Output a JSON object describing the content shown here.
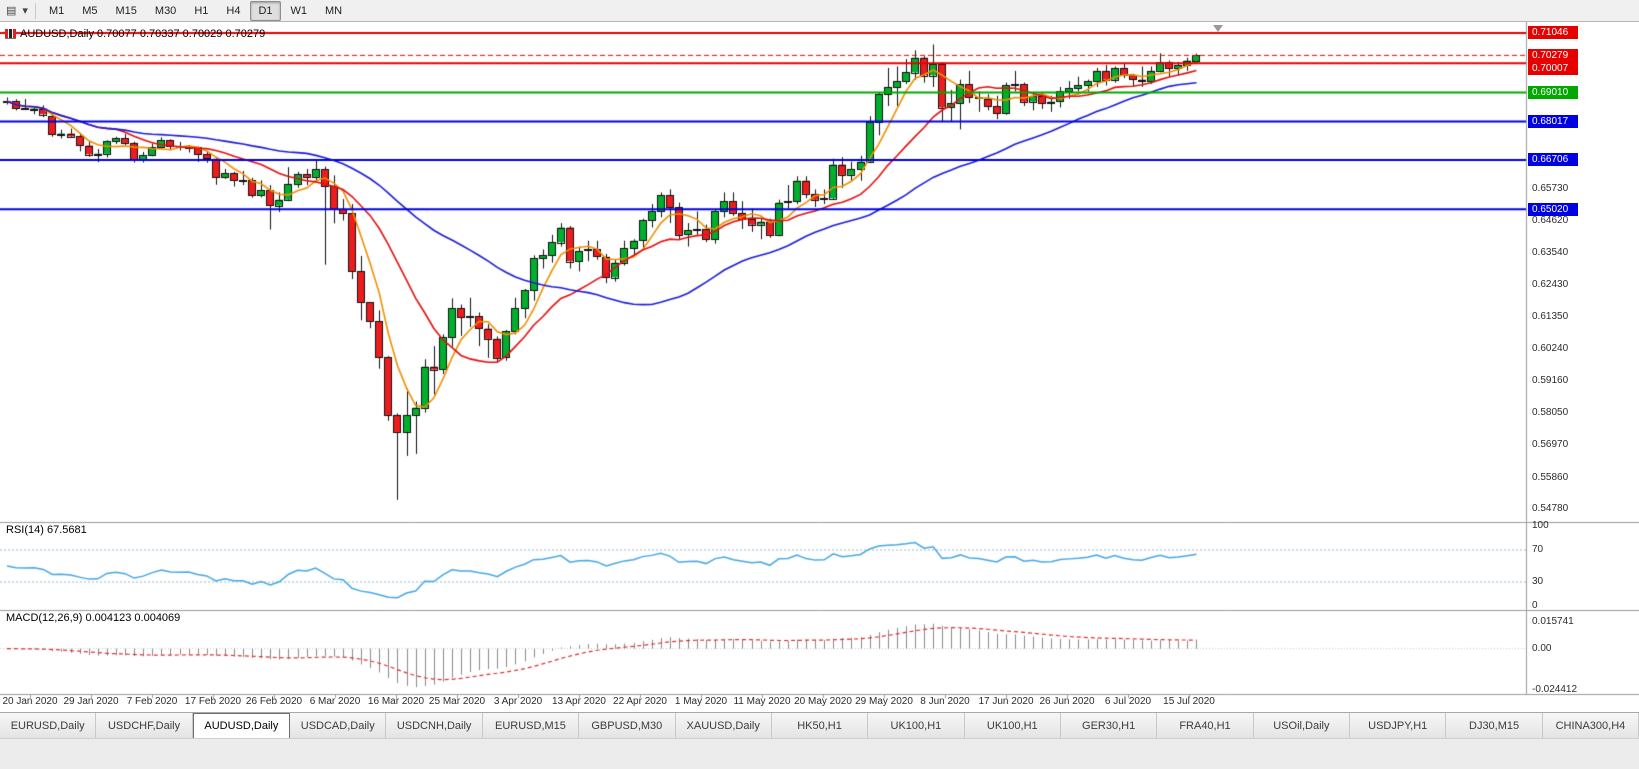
{
  "toolbar": {
    "chart_icon_glyph": "▤",
    "caret_glyph": "▾",
    "timeframes": [
      "M1",
      "M5",
      "M15",
      "M30",
      "H1",
      "H4",
      "D1",
      "W1",
      "MN"
    ],
    "active_timeframe": "D1"
  },
  "chart": {
    "title_line": "AUDUSD,Daily 0.70077 0.70337 0.70029 0.70279",
    "symbol": "AUDUSD",
    "period": "Daily"
  },
  "colors": {
    "up": "#00b02c",
    "down": "#ee1c1c",
    "wick": "#111111",
    "background": "#ffffff"
  },
  "chart_data": {
    "type": "candlestick",
    "symbol": "AUDUSD",
    "timeframe": "Daily",
    "last_ohlc": [
      0.70077,
      0.70337,
      0.70029,
      0.70279
    ],
    "price_axis": {
      "min": 0.5448,
      "max": 0.7135
    },
    "x_axis_dates": [
      "20 Jan 2020",
      "29 Jan 2020",
      "7 Feb 2020",
      "17 Feb 2020",
      "26 Feb 2020",
      "6 Mar 2020",
      "16 Mar 2020",
      "25 Mar 2020",
      "3 Apr 2020",
      "13 Apr 2020",
      "22 Apr 2020",
      "1 May 2020",
      "11 May 2020",
      "20 May 2020",
      "29 May 2020",
      "8 Jun 2020",
      "17 Jun 2020",
      "26 Jun 2020",
      "6 Jul 2020",
      "15 Jul 2020"
    ],
    "candles": [
      [
        0.6871,
        0.6884,
        0.686,
        0.6871
      ],
      [
        0.6871,
        0.6878,
        0.684,
        0.6847
      ],
      [
        0.6847,
        0.6879,
        0.6842,
        0.6845
      ],
      [
        0.6845,
        0.685,
        0.6827,
        0.6846
      ],
      [
        0.6846,
        0.6857,
        0.6817,
        0.6827
      ],
      [
        0.682,
        0.6829,
        0.675,
        0.6758
      ],
      [
        0.6758,
        0.6774,
        0.6744,
        0.6761
      ],
      [
        0.6761,
        0.6778,
        0.6748,
        0.6751
      ],
      [
        0.6751,
        0.6759,
        0.67,
        0.672
      ],
      [
        0.672,
        0.6733,
        0.6682,
        0.669
      ],
      [
        0.669,
        0.6708,
        0.6663,
        0.6692
      ],
      [
        0.6692,
        0.6738,
        0.6679,
        0.6735
      ],
      [
        0.6735,
        0.675,
        0.6725,
        0.6745
      ],
      [
        0.6745,
        0.676,
        0.6722,
        0.6729
      ],
      [
        0.6729,
        0.6733,
        0.6662,
        0.6672
      ],
      [
        0.6672,
        0.6698,
        0.6662,
        0.6687
      ],
      [
        0.6687,
        0.6727,
        0.6683,
        0.6715
      ],
      [
        0.6715,
        0.6748,
        0.671,
        0.6738
      ],
      [
        0.6738,
        0.6741,
        0.6704,
        0.6717
      ],
      [
        0.6717,
        0.6732,
        0.6703,
        0.6712
      ],
      [
        0.6712,
        0.6722,
        0.6696,
        0.6714
      ],
      [
        0.6714,
        0.6717,
        0.6664,
        0.669
      ],
      [
        0.669,
        0.67,
        0.6661,
        0.6675
      ],
      [
        0.6675,
        0.6677,
        0.6586,
        0.6612
      ],
      [
        0.6612,
        0.664,
        0.6606,
        0.6626
      ],
      [
        0.6626,
        0.663,
        0.658,
        0.6601
      ],
      [
        0.6601,
        0.6633,
        0.6585,
        0.6601
      ],
      [
        0.6601,
        0.661,
        0.6542,
        0.6551
      ],
      [
        0.6551,
        0.6601,
        0.6543,
        0.6567
      ],
      [
        0.6567,
        0.6585,
        0.6433,
        0.6515
      ],
      [
        0.6515,
        0.656,
        0.6493,
        0.6535
      ],
      [
        0.6535,
        0.6646,
        0.653,
        0.6589
      ],
      [
        0.6589,
        0.663,
        0.6576,
        0.6622
      ],
      [
        0.6622,
        0.664,
        0.6585,
        0.6613
      ],
      [
        0.6613,
        0.667,
        0.6599,
        0.6639
      ],
      [
        0.6639,
        0.6648,
        0.6313,
        0.6581
      ],
      [
        0.6581,
        0.6618,
        0.6454,
        0.6503
      ],
      [
        0.6503,
        0.6537,
        0.6464,
        0.6489
      ],
      [
        0.6489,
        0.652,
        0.6264,
        0.629
      ],
      [
        0.629,
        0.6343,
        0.6123,
        0.6184
      ],
      [
        0.6184,
        0.6185,
        0.6096,
        0.612
      ],
      [
        0.612,
        0.6157,
        0.5958,
        0.5997
      ],
      [
        0.5997,
        0.6001,
        0.578,
        0.58
      ],
      [
        0.58,
        0.5805,
        0.551,
        0.5742
      ],
      [
        0.5742,
        0.589,
        0.566,
        0.58
      ],
      [
        0.58,
        0.5846,
        0.5667,
        0.5825
      ],
      [
        0.5825,
        0.599,
        0.5808,
        0.5965
      ],
      [
        0.5965,
        0.6035,
        0.587,
        0.5955
      ],
      [
        0.5955,
        0.6075,
        0.594,
        0.6065
      ],
      [
        0.6065,
        0.6198,
        0.6033,
        0.6165
      ],
      [
        0.6165,
        0.6177,
        0.607,
        0.6133
      ],
      [
        0.6133,
        0.62,
        0.61,
        0.6137
      ],
      [
        0.6137,
        0.615,
        0.6035,
        0.6095
      ],
      [
        0.6095,
        0.611,
        0.5995,
        0.606
      ],
      [
        0.606,
        0.6068,
        0.5982,
        0.5995
      ],
      [
        0.5995,
        0.609,
        0.5985,
        0.6085
      ],
      [
        0.6085,
        0.62,
        0.6075,
        0.6165
      ],
      [
        0.6165,
        0.623,
        0.613,
        0.6225
      ],
      [
        0.6225,
        0.6345,
        0.619,
        0.6335
      ],
      [
        0.6335,
        0.6365,
        0.63,
        0.6345
      ],
      [
        0.6345,
        0.6415,
        0.632,
        0.639
      ],
      [
        0.639,
        0.6455,
        0.6375,
        0.644
      ],
      [
        0.644,
        0.6445,
        0.63,
        0.6325
      ],
      [
        0.6325,
        0.6375,
        0.629,
        0.636
      ],
      [
        0.636,
        0.6395,
        0.6325,
        0.6365
      ],
      [
        0.6365,
        0.6395,
        0.633,
        0.634
      ],
      [
        0.634,
        0.635,
        0.625,
        0.627
      ],
      [
        0.627,
        0.633,
        0.6255,
        0.632
      ],
      [
        0.632,
        0.6395,
        0.631,
        0.637
      ],
      [
        0.637,
        0.64,
        0.634,
        0.6395
      ],
      [
        0.6395,
        0.647,
        0.637,
        0.6465
      ],
      [
        0.6465,
        0.652,
        0.644,
        0.6495
      ],
      [
        0.6495,
        0.656,
        0.6475,
        0.655
      ],
      [
        0.655,
        0.657,
        0.6455,
        0.651
      ],
      [
        0.651,
        0.6525,
        0.64,
        0.6415
      ],
      [
        0.6415,
        0.6455,
        0.6375,
        0.643
      ],
      [
        0.643,
        0.6495,
        0.6415,
        0.6435
      ],
      [
        0.6435,
        0.645,
        0.639,
        0.64
      ],
      [
        0.64,
        0.65,
        0.6385,
        0.6495
      ],
      [
        0.6495,
        0.656,
        0.6475,
        0.653
      ],
      [
        0.653,
        0.656,
        0.648,
        0.649
      ],
      [
        0.649,
        0.653,
        0.6435,
        0.647
      ],
      [
        0.647,
        0.6505,
        0.6425,
        0.645
      ],
      [
        0.645,
        0.647,
        0.64,
        0.646
      ],
      [
        0.646,
        0.647,
        0.6405,
        0.6415
      ],
      [
        0.6415,
        0.6535,
        0.641,
        0.6525
      ],
      [
        0.6525,
        0.6585,
        0.6505,
        0.653
      ],
      [
        0.653,
        0.6615,
        0.652,
        0.66
      ],
      [
        0.66,
        0.6615,
        0.654,
        0.6555
      ],
      [
        0.6555,
        0.657,
        0.651,
        0.6535
      ],
      [
        0.6535,
        0.657,
        0.652,
        0.654
      ],
      [
        0.654,
        0.6675,
        0.6535,
        0.6655
      ],
      [
        0.6655,
        0.668,
        0.6575,
        0.662
      ],
      [
        0.662,
        0.6665,
        0.66,
        0.664
      ],
      [
        0.664,
        0.6685,
        0.66,
        0.6665
      ],
      [
        0.6665,
        0.682,
        0.666,
        0.68
      ],
      [
        0.68,
        0.69,
        0.6755,
        0.6895
      ],
      [
        0.6895,
        0.6985,
        0.6855,
        0.692
      ],
      [
        0.692,
        0.699,
        0.6855,
        0.694
      ],
      [
        0.694,
        0.7015,
        0.693,
        0.697
      ],
      [
        0.697,
        0.7045,
        0.6945,
        0.702
      ],
      [
        0.702,
        0.7025,
        0.6935,
        0.696
      ],
      [
        0.696,
        0.7065,
        0.692,
        0.7
      ],
      [
        0.7,
        0.7005,
        0.68,
        0.685
      ],
      [
        0.685,
        0.691,
        0.68,
        0.6865
      ],
      [
        0.6865,
        0.6945,
        0.6775,
        0.693
      ],
      [
        0.693,
        0.6975,
        0.6865,
        0.6885
      ],
      [
        0.6885,
        0.6905,
        0.6835,
        0.688
      ],
      [
        0.688,
        0.6895,
        0.684,
        0.6855
      ],
      [
        0.6855,
        0.689,
        0.681,
        0.683
      ],
      [
        0.683,
        0.6935,
        0.6825,
        0.6925
      ],
      [
        0.6925,
        0.6975,
        0.6905,
        0.693
      ],
      [
        0.693,
        0.6935,
        0.6855,
        0.687
      ],
      [
        0.687,
        0.6895,
        0.684,
        0.689
      ],
      [
        0.689,
        0.69,
        0.6845,
        0.6865
      ],
      [
        0.6865,
        0.689,
        0.6835,
        0.687
      ],
      [
        0.687,
        0.692,
        0.685,
        0.6905
      ],
      [
        0.6905,
        0.694,
        0.688,
        0.6915
      ],
      [
        0.6915,
        0.6955,
        0.6905,
        0.6925
      ],
      [
        0.6925,
        0.6945,
        0.6905,
        0.694
      ],
      [
        0.694,
        0.6985,
        0.692,
        0.6975
      ],
      [
        0.6975,
        0.6995,
        0.6925,
        0.6945
      ],
      [
        0.6945,
        0.699,
        0.6935,
        0.6985
      ],
      [
        0.6985,
        0.7,
        0.695,
        0.696
      ],
      [
        0.696,
        0.6965,
        0.692,
        0.6945
      ],
      [
        0.6945,
        0.699,
        0.692,
        0.694
      ],
      [
        0.694,
        0.699,
        0.693,
        0.6975
      ],
      [
        0.6975,
        0.7035,
        0.697,
        0.7005
      ],
      [
        0.7005,
        0.701,
        0.6955,
        0.6985
      ],
      [
        0.6985,
        0.7005,
        0.696,
        0.6995
      ],
      [
        0.6995,
        0.702,
        0.6975,
        0.701
      ],
      [
        0.70077,
        0.70337,
        0.70029,
        0.70279
      ]
    ],
    "horizontal_levels": [
      {
        "price": 0.71046,
        "color": "#e60000",
        "style": "solid",
        "width": 2
      },
      {
        "price": 0.70279,
        "color": "#e60000",
        "style": "dash",
        "width": 1
      },
      {
        "price": 0.70007,
        "color": "#e60000",
        "style": "solid",
        "width": 2
      },
      {
        "price": 0.6901,
        "color": "#00a800",
        "style": "solid",
        "width": 2
      },
      {
        "price": 0.68017,
        "color": "#0000e0",
        "style": "solid",
        "width": 2
      },
      {
        "price": 0.66706,
        "color": "#0000e0",
        "style": "solid",
        "width": 2
      },
      {
        "price": 0.6502,
        "color": "#0000e0",
        "style": "solid",
        "width": 2
      }
    ],
    "moving_averages": [
      {
        "name": "ma-fast",
        "estimated_period": 5,
        "color": "#f09000"
      },
      {
        "name": "ma-mid",
        "estimated_period": 13,
        "color": "#e41010"
      },
      {
        "name": "ma-slow",
        "estimated_period": 34,
        "color": "#1c1cd8"
      }
    ],
    "rsi": {
      "label": "RSI(14) 67.5681",
      "period": 14,
      "value": 67.5681,
      "color": "#45a7e6",
      "level_lines": [
        70,
        30
      ],
      "scale_labels": [
        "100",
        "70",
        "30",
        "0"
      ]
    },
    "macd": {
      "label": "MACD(12,26,9) 0.004123 0.004069",
      "params": [
        12,
        26,
        9
      ],
      "values": [
        0.004123,
        0.004069
      ],
      "histogram_color": "#8a8a8a",
      "signal_color": "#e03030",
      "range": [
        -0.024412,
        0.015741
      ],
      "scale_labels": [
        "0.015741",
        "0.00",
        "-0.024412"
      ]
    }
  },
  "price_scale": {
    "tags": [
      {
        "text": "0.71046",
        "value": 0.71046,
        "color": "#e60000"
      },
      {
        "text": "0.70279",
        "value": 0.70279,
        "color": "#e60000"
      },
      {
        "text": "0.70007",
        "value": 0.70007,
        "color": "#e60000"
      },
      {
        "text": "0.69010",
        "value": 0.6901,
        "color": "#00a800"
      },
      {
        "text": "0.68017",
        "value": 0.68017,
        "color": "#0000e0"
      },
      {
        "text": "0.66706",
        "value": 0.66706,
        "color": "#0000e0"
      },
      {
        "text": "0.65020",
        "value": 0.6502,
        "color": "#0000e0"
      }
    ],
    "labels": [
      "0.65730",
      "0.64620",
      "0.63540",
      "0.62430",
      "0.61350",
      "0.60240",
      "0.59160",
      "0.58050",
      "0.56970",
      "0.55860",
      "0.54780"
    ]
  },
  "tabs": {
    "active_index": 2,
    "items": [
      "EURUSD,Daily",
      "USDCHF,Daily",
      "AUDUSD,Daily",
      "USDCAD,Daily",
      "USDCNH,Daily",
      "EURUSD,M15",
      "GBPUSD,M30",
      "XAUUSD,Daily",
      "HK50,H1",
      "UK100,H1",
      "UK100,H1",
      "GER30,H1",
      "FRA40,H1",
      "USOil,Daily",
      "USDJPY,H1",
      "DJ30,M15",
      "CHINA300,H4"
    ]
  }
}
